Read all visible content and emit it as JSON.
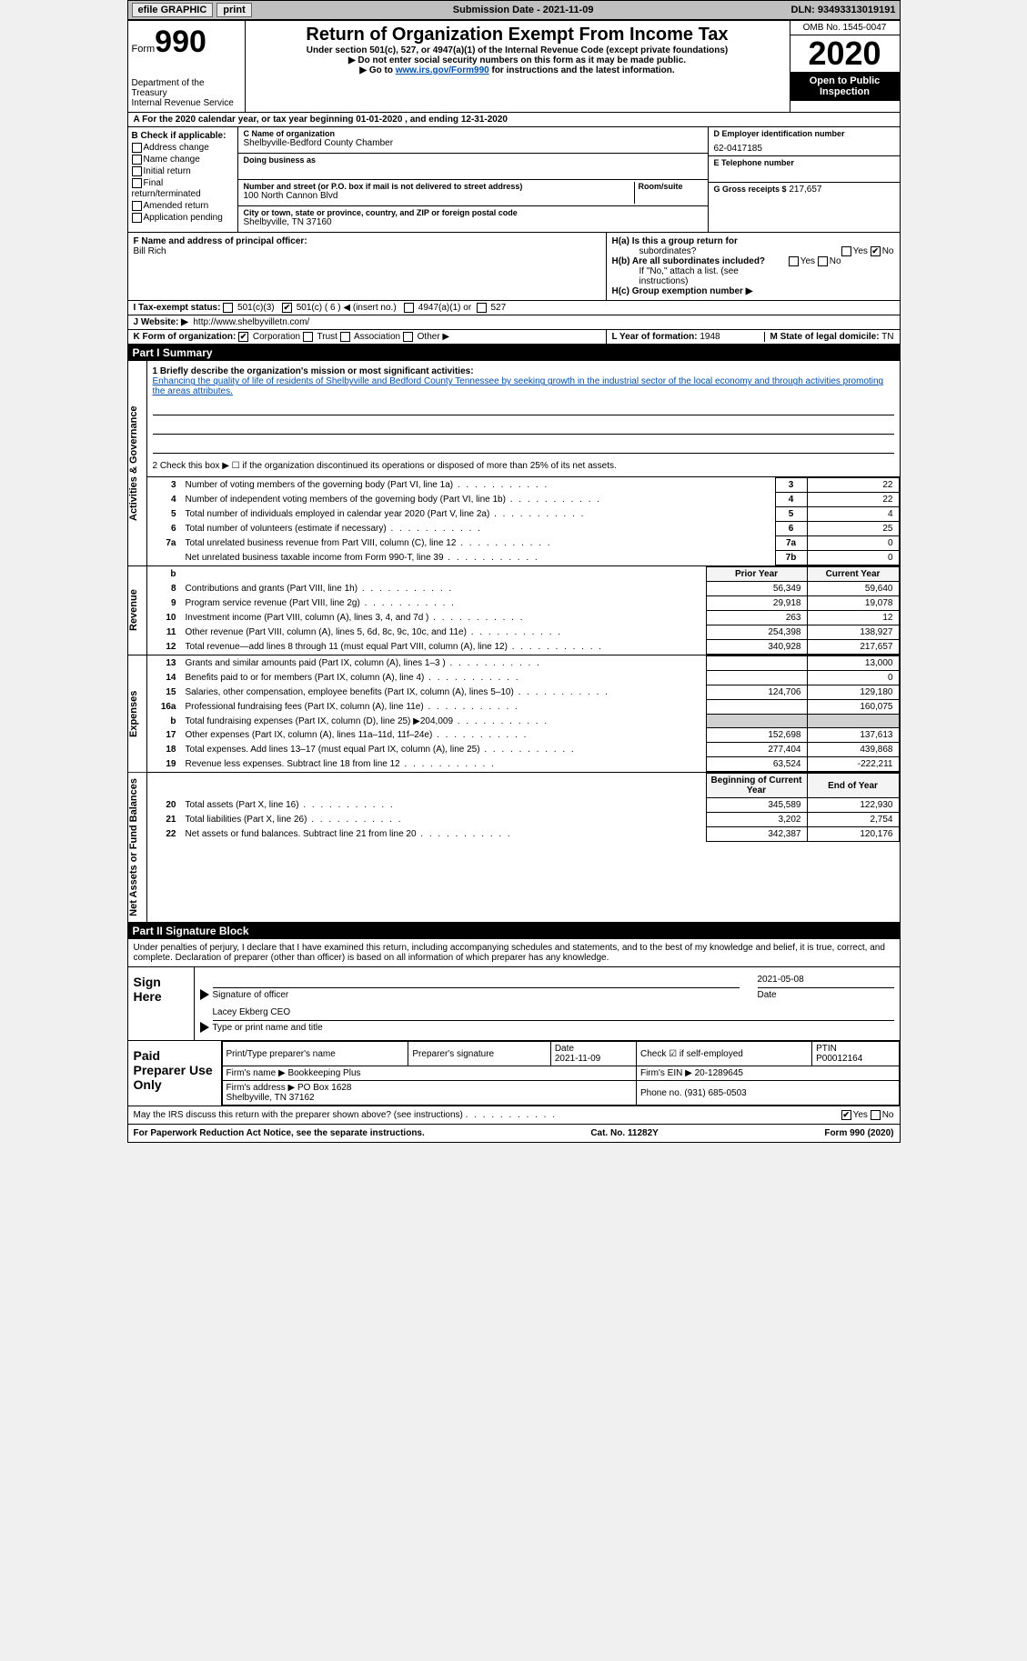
{
  "topbar": {
    "efile_label": "efile GRAPHIC",
    "print_btn": "print",
    "submission_label": "Submission Date - 2021-11-09",
    "dln": "DLN: 93493313019191"
  },
  "header": {
    "form_label": "Form",
    "form_num": "990",
    "title": "Return of Organization Exempt From Income Tax",
    "sub1": "Under section 501(c), 527, or 4947(a)(1) of the Internal Revenue Code (except private foundations)",
    "sub2": "▶ Do not enter social security numbers on this form as it may be made public.",
    "sub3_a": "▶ Go to ",
    "sub3_link": "www.irs.gov/Form990",
    "sub3_b": " for instructions and the latest information.",
    "dept": "Department of the Treasury\nInternal Revenue Service",
    "omb": "OMB No. 1545-0047",
    "year": "2020",
    "open_inspect": "Open to Public Inspection"
  },
  "section_a": "A  For the 2020 calendar year, or tax year beginning 01-01-2020   , and ending 12-31-2020",
  "section_b": {
    "label": "B Check if applicable:",
    "opts": [
      "Address change",
      "Name change",
      "Initial return",
      "Final return/terminated",
      "Amended return",
      "Application pending"
    ]
  },
  "section_c": {
    "name_label": "C Name of organization",
    "name_val": "Shelbyville-Bedford County Chamber",
    "dba_label": "Doing business as",
    "addr_label": "Number and street (or P.O. box if mail is not delivered to street address)",
    "room_label": "Room/suite",
    "addr_val": "100 North Cannon Blvd",
    "city_label": "City or town, state or province, country, and ZIP or foreign postal code",
    "city_val": "Shelbyville, TN  37160"
  },
  "section_de": {
    "d_label": "D Employer identification number",
    "d_val": "62-0417185",
    "e_label": "E Telephone number",
    "g_label": "G Gross receipts $",
    "g_val": "217,657"
  },
  "section_f": {
    "label": "F  Name and address of principal officer:",
    "val": "Bill Rich"
  },
  "section_h": {
    "ha_label": "H(a)  Is this a group return for",
    "ha_sub": "subordinates?",
    "ha_yes": "Yes",
    "ha_no": "No",
    "hb_label": "H(b)  Are all subordinates included?",
    "hb_yes": "Yes",
    "hb_no": "No",
    "hb_note": "If \"No,\" attach a list. (see instructions)",
    "hc_label": "H(c)  Group exemption number ▶"
  },
  "section_i": {
    "label": "I   Tax-exempt status:",
    "o501c3": "501(c)(3)",
    "o501c": "501(c) ( 6 ) ◀ (insert no.)",
    "o4947": "4947(a)(1) or",
    "o527": "527"
  },
  "section_j": {
    "label": "J   Website: ▶",
    "val": "http://www.shelbyvilletn.com/"
  },
  "section_k": {
    "label": "K Form of organization:",
    "corp": "Corporation",
    "trust": "Trust",
    "assoc": "Association",
    "other": "Other ▶"
  },
  "section_l": {
    "label": "L Year of formation:",
    "val": "1948"
  },
  "section_m": {
    "label": "M State of legal domicile:",
    "val": "TN"
  },
  "part1": {
    "header": "Part I     Summary",
    "l1_label": "1   Briefly describe the organization's mission or most significant activities:",
    "l1_val": "Enhancing the quality of life of residents of Shelbyville and Bedford County Tennessee by seeking growth in the industrial sector of the local economy and through activities promoting the areas attributes.",
    "l2_label": "2   Check this box ▶ ☐  if the organization discontinued its operations or disposed of more than 25% of its net assets.",
    "side_gov": "Activities & Governance",
    "side_rev": "Revenue",
    "side_exp": "Expenses",
    "side_net": "Net Assets or Fund Balances",
    "rows_gov": [
      {
        "n": "3",
        "label": "Number of voting members of the governing body (Part VI, line 1a)",
        "idx": "3",
        "val": "22"
      },
      {
        "n": "4",
        "label": "Number of independent voting members of the governing body (Part VI, line 1b)",
        "idx": "4",
        "val": "22"
      },
      {
        "n": "5",
        "label": "Total number of individuals employed in calendar year 2020 (Part V, line 2a)",
        "idx": "5",
        "val": "4"
      },
      {
        "n": "6",
        "label": "Total number of volunteers (estimate if necessary)",
        "idx": "6",
        "val": "25"
      },
      {
        "n": "7a",
        "label": "Total unrelated business revenue from Part VIII, column (C), line 12",
        "idx": "7a",
        "val": "0"
      },
      {
        "n": "",
        "label": "Net unrelated business taxable income from Form 990-T, line 39",
        "idx": "7b",
        "val": "0"
      }
    ],
    "head_labels": {
      "b": "b",
      "prior": "Prior Year",
      "curr": "Current Year"
    },
    "rows_rev": [
      {
        "n": "8",
        "label": "Contributions and grants (Part VIII, line 1h)",
        "prior": "56,349",
        "curr": "59,640"
      },
      {
        "n": "9",
        "label": "Program service revenue (Part VIII, line 2g)",
        "prior": "29,918",
        "curr": "19,078"
      },
      {
        "n": "10",
        "label": "Investment income (Part VIII, column (A), lines 3, 4, and 7d )",
        "prior": "263",
        "curr": "12"
      },
      {
        "n": "11",
        "label": "Other revenue (Part VIII, column (A), lines 5, 6d, 8c, 9c, 10c, and 11e)",
        "prior": "254,398",
        "curr": "138,927"
      },
      {
        "n": "12",
        "label": "Total revenue—add lines 8 through 11 (must equal Part VIII, column (A), line 12)",
        "prior": "340,928",
        "curr": "217,657"
      }
    ],
    "rows_exp": [
      {
        "n": "13",
        "label": "Grants and similar amounts paid (Part IX, column (A), lines 1–3 )",
        "prior": "",
        "curr": "13,000"
      },
      {
        "n": "14",
        "label": "Benefits paid to or for members (Part IX, column (A), line 4)",
        "prior": "",
        "curr": "0"
      },
      {
        "n": "15",
        "label": "Salaries, other compensation, employee benefits (Part IX, column (A), lines 5–10)",
        "prior": "124,706",
        "curr": "129,180"
      },
      {
        "n": "16a",
        "label": "Professional fundraising fees (Part IX, column (A), line 11e)",
        "prior": "",
        "curr": "160,075"
      },
      {
        "n": "b",
        "label": "Total fundraising expenses (Part IX, column (D), line 25) ▶204,009",
        "prior": "grey",
        "curr": "grey"
      },
      {
        "n": "17",
        "label": "Other expenses (Part IX, column (A), lines 11a–11d, 11f–24e)",
        "prior": "152,698",
        "curr": "137,613"
      },
      {
        "n": "18",
        "label": "Total expenses. Add lines 13–17 (must equal Part IX, column (A), line 25)",
        "prior": "277,404",
        "curr": "439,868"
      },
      {
        "n": "19",
        "label": "Revenue less expenses. Subtract line 18 from line 12",
        "prior": "63,524",
        "curr": "-222,211"
      }
    ],
    "net_head": {
      "a": "Beginning of Current Year",
      "b": "End of Year"
    },
    "rows_net": [
      {
        "n": "20",
        "label": "Total assets (Part X, line 16)",
        "prior": "345,589",
        "curr": "122,930"
      },
      {
        "n": "21",
        "label": "Total liabilities (Part X, line 26)",
        "prior": "3,202",
        "curr": "2,754"
      },
      {
        "n": "22",
        "label": "Net assets or fund balances. Subtract line 21 from line 20",
        "prior": "342,387",
        "curr": "120,176"
      }
    ]
  },
  "part2": {
    "header": "Part II    Signature Block",
    "decl": "Under penalties of perjury, I declare that I have examined this return, including accompanying schedules and statements, and to the best of my knowledge and belief, it is true, correct, and complete. Declaration of preparer (other than officer) is based on all information of which preparer has any knowledge.",
    "sign_here": "Sign Here",
    "sig_officer": "Signature of officer",
    "sig_date_label": "Date",
    "sig_date": "2021-05-08",
    "type_name": "Lacey Ekberg CEO",
    "type_label": "Type or print name and title",
    "paid_prep": "Paid Preparer Use Only",
    "p_name_label": "Print/Type preparer's name",
    "p_sig_label": "Preparer's signature",
    "p_date_label": "Date",
    "p_date": "2021-11-09",
    "p_check_label": "Check ☑  if self-employed",
    "ptin_label": "PTIN",
    "ptin": "P00012164",
    "firm_name_label": "Firm's name     ▶",
    "firm_name": "Bookkeeping Plus",
    "firm_ein_label": "Firm's EIN ▶",
    "firm_ein": "20-1289645",
    "firm_addr_label": "Firm's address ▶",
    "firm_addr": "PO Box 1628\nShelbyville, TN  37162",
    "phone_label": "Phone no.",
    "phone": "(931) 685-0503",
    "may_irs": "May the IRS discuss this return with the preparer shown above? (see instructions)",
    "yes": "Yes",
    "no": "No"
  },
  "footer": {
    "left": "For Paperwork Reduction Act Notice, see the separate instructions.",
    "cat": "Cat. No. 11282Y",
    "right": "Form 990 (2020)"
  }
}
